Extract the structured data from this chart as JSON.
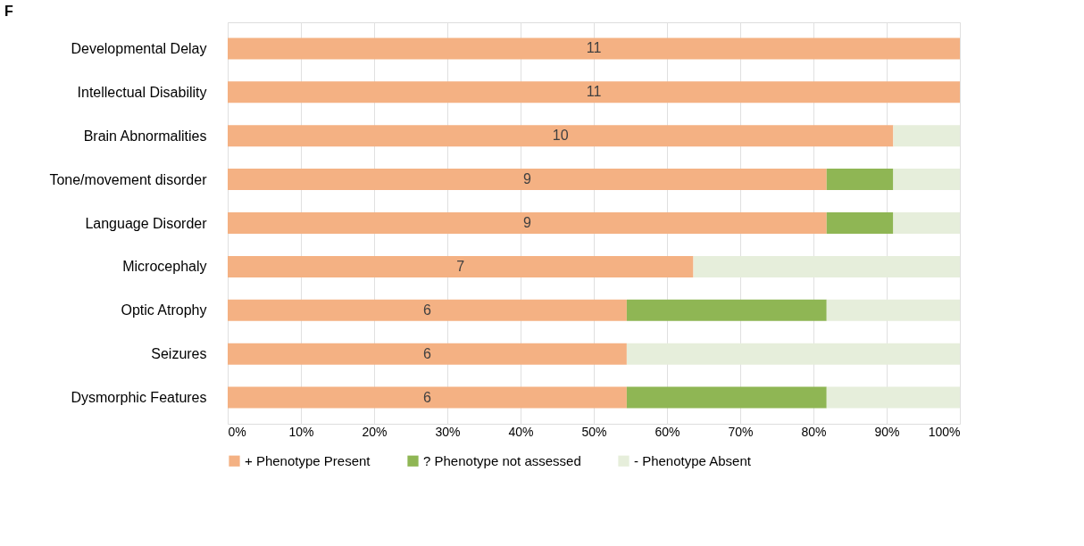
{
  "chart_data": {
    "type": "bar",
    "title": "F",
    "orientation": "horizontal",
    "stacked": true,
    "grid": "x",
    "legend": "bottom",
    "categories": [
      "Developmental Delay",
      "Intellectual Disability",
      "Brain Abnormalities",
      "Tone/movement disorder",
      "Language Disorder",
      "Microcephaly",
      "Optic Atrophy",
      "Seizures",
      "Dysmorphic Features"
    ],
    "xlim": [
      0,
      100
    ],
    "xticks": [
      {
        "value": 0,
        "label": "0%"
      },
      {
        "value": 10,
        "label": "10%"
      },
      {
        "value": 20,
        "label": "20%"
      },
      {
        "value": 30,
        "label": "30%"
      },
      {
        "value": 40,
        "label": "40%"
      },
      {
        "value": 50,
        "label": "50%"
      },
      {
        "value": 60,
        "label": "60%"
      },
      {
        "value": 70,
        "label": "70%"
      },
      {
        "value": 80,
        "label": "80%"
      },
      {
        "value": 90,
        "label": "90%"
      },
      {
        "value": 100,
        "label": "100%"
      }
    ],
    "series": [
      {
        "name": "+ Phenotype Present",
        "color": "#f4b183",
        "values": [
          100,
          100,
          90.9,
          81.8,
          81.8,
          63.6,
          54.5,
          54.5,
          54.5
        ]
      },
      {
        "name": "? Phenotype not assessed",
        "color": "#8fb654",
        "values": [
          0,
          0,
          0,
          9.1,
          9.1,
          0,
          27.3,
          0,
          27.3
        ]
      },
      {
        "name": "- Phenotype Absent",
        "color": "#e6eedb",
        "values": [
          0,
          0,
          9.1,
          9.1,
          9.1,
          36.4,
          18.2,
          45.5,
          18.2
        ]
      }
    ],
    "annotations": [
      "11",
      "11",
      "10",
      "9",
      "9",
      "7",
      "6",
      "6",
      "6"
    ]
  }
}
